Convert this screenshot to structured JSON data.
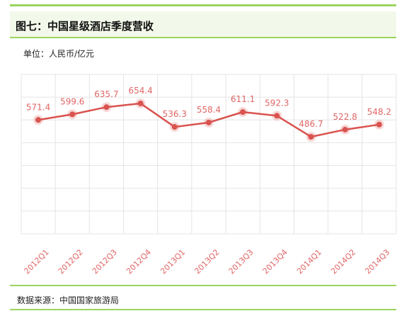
{
  "title": "图七：中国星级酒店季度营收",
  "unit_label": "单位：人民币/亿元",
  "source": "数据来源：中国国家旅游局",
  "colors": {
    "accent": "#9bd45f",
    "line": "#d9534f",
    "label": "#e06666",
    "grid": "#e4e4e4"
  },
  "chart_data": {
    "type": "line",
    "categories": [
      "2012Q1",
      "2012Q2",
      "2012Q3",
      "2012Q4",
      "2013Q1",
      "2013Q2",
      "2013Q3",
      "2013Q4",
      "2014Q1",
      "2014Q2",
      "2014Q3"
    ],
    "series": [
      {
        "values": [
          571.4,
          599.6,
          635.7,
          654.4,
          536.3,
          558.4,
          611.1,
          592.3,
          486.7,
          522.8,
          548.2
        ]
      }
    ],
    "data_labels": [
      "571.4",
      "599.6",
      "635.7",
      "654.4",
      "536.3",
      "558.4",
      "611.1",
      "592.3",
      "486.7",
      "522.8",
      "548.2"
    ],
    "ylim": [
      0,
      800
    ],
    "grid": true,
    "legend": "none"
  }
}
